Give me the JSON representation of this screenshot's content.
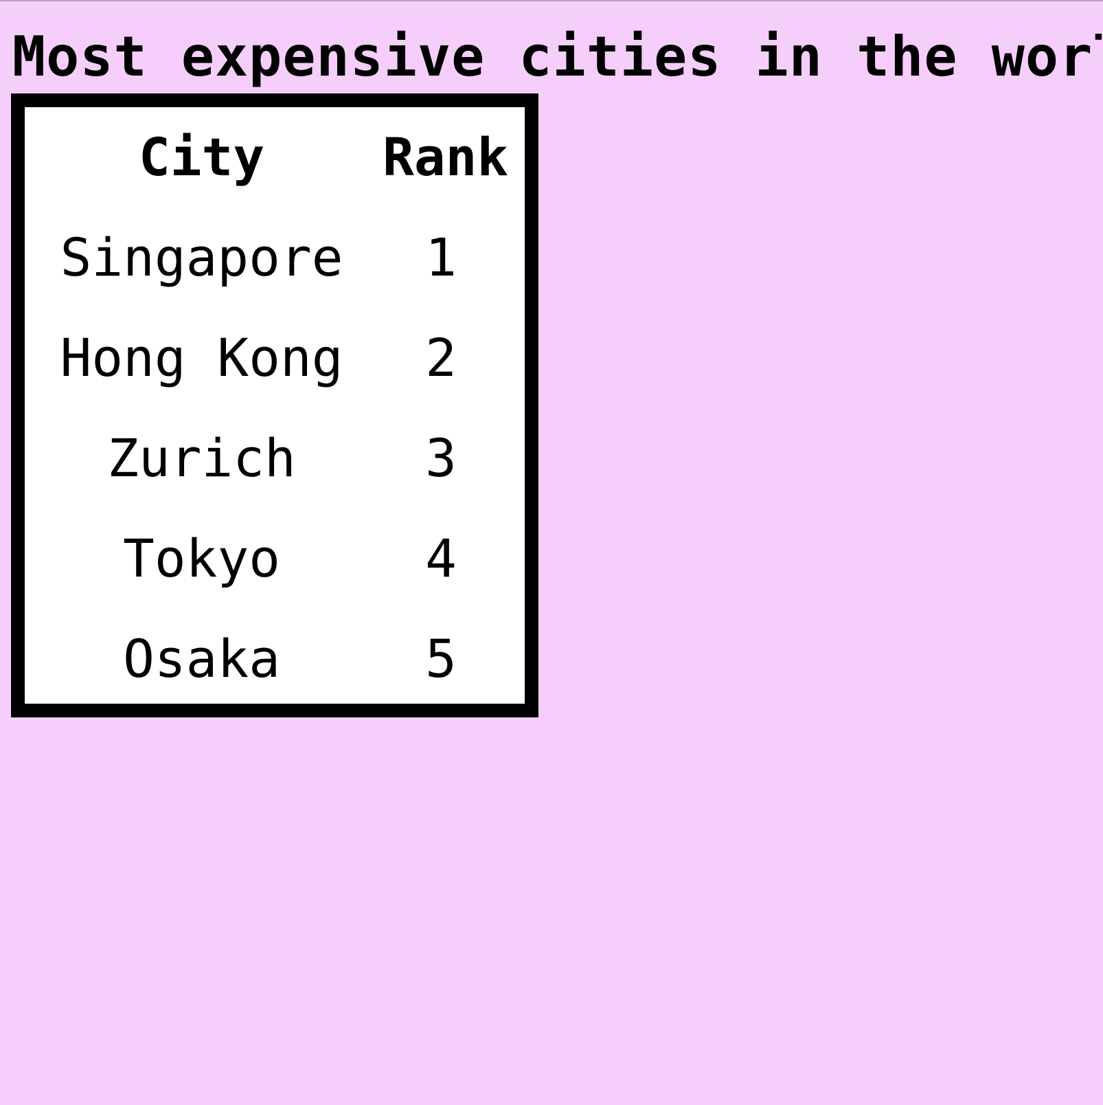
{
  "page": {
    "title": "Most expensive cities in the worl-",
    "background_color": "#f5cefb"
  },
  "table": {
    "headers": {
      "city": "City",
      "rank": "Rank"
    },
    "rows": [
      {
        "city": "Singapore",
        "rank": "1"
      },
      {
        "city": "Hong Kong",
        "rank": "2"
      },
      {
        "city": "Zurich",
        "rank": "3"
      },
      {
        "city": "Tokyo",
        "rank": "4"
      },
      {
        "city": "Osaka",
        "rank": "5"
      }
    ]
  }
}
